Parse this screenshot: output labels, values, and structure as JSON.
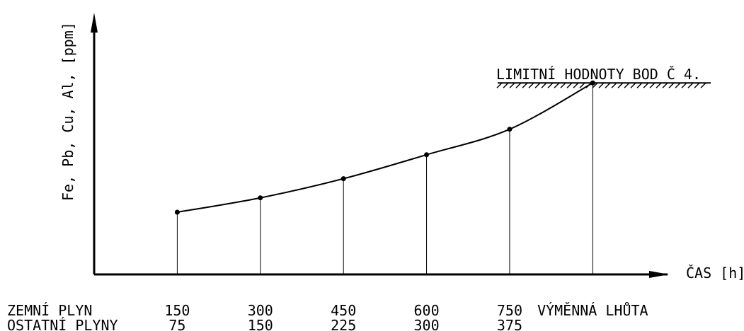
{
  "chart_data": {
    "type": "line",
    "ylabel": "Fe, Pb, Cu, Al, [ppm]",
    "xlabel": "ČAS [h]",
    "limit_label": "LIMITNÍ HODNOTY BOD Č 4.",
    "points": [
      {
        "x": 150,
        "y": 0.19
      },
      {
        "x": 300,
        "y": 0.28
      },
      {
        "x": 450,
        "y": 0.4
      },
      {
        "x": 600,
        "y": 0.55
      },
      {
        "x": 750,
        "y": 0.71
      },
      {
        "x": 900,
        "y": 1.0
      }
    ],
    "xlim": [
      0,
      1035
    ],
    "ylim": [
      -0.2,
      1.44
    ],
    "row_labels": [
      {
        "name": "ZEMNÍ PLYN",
        "values": [
          "150",
          "300",
          "450",
          "600",
          "750",
          "VÝMĚNNÁ LHŮTA"
        ]
      },
      {
        "name": "OSTATNÍ PLYNY",
        "values": [
          "75",
          "150",
          "225",
          "300",
          "375"
        ]
      }
    ]
  }
}
